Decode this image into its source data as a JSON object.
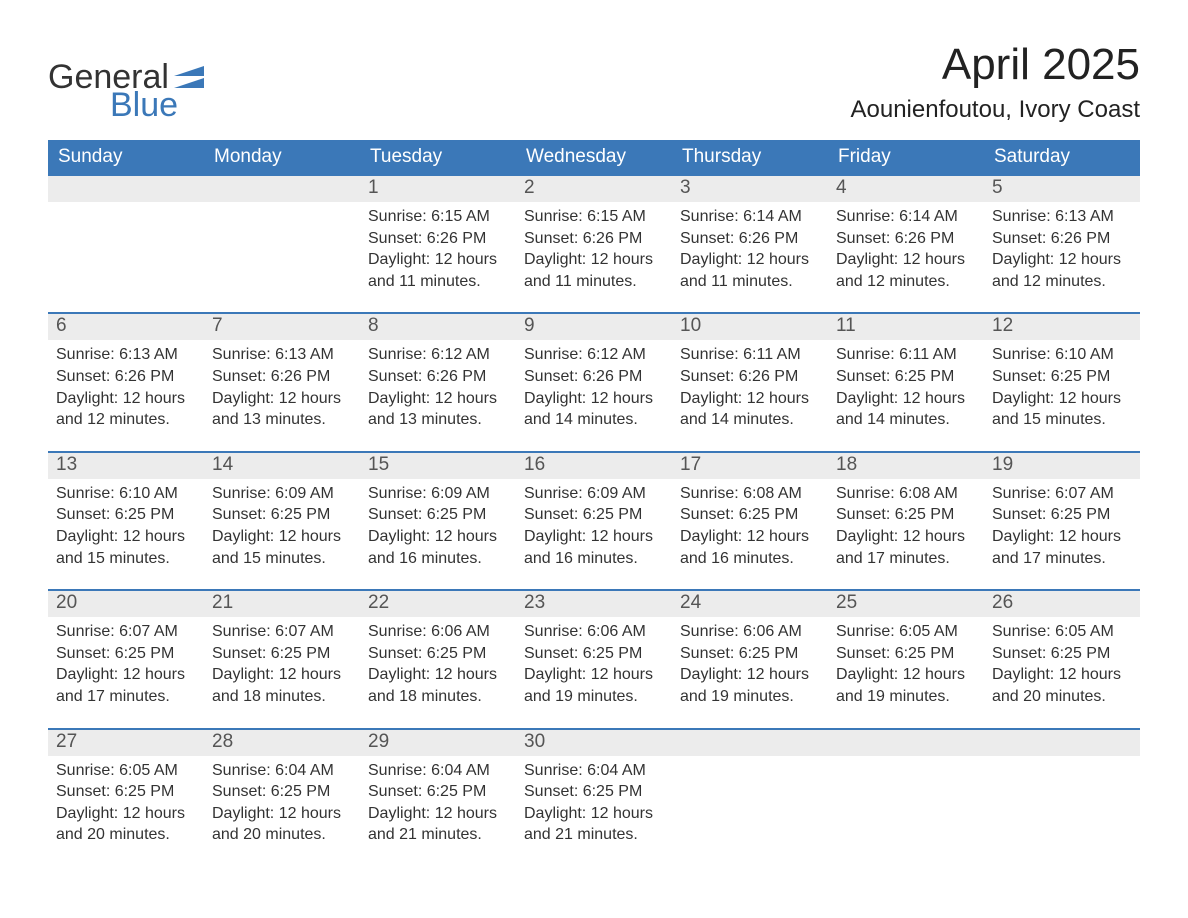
{
  "logo": {
    "text1": "General",
    "text2": "Blue",
    "color_general": "#333333",
    "color_blue": "#3b78b8",
    "flag_color": "#3b78b8"
  },
  "title": "April 2025",
  "location": "Aounienfoutou, Ivory Coast",
  "colors": {
    "header_bar": "#3b78b8",
    "header_text": "#ffffff",
    "daynum_bg": "#ececec",
    "text": "#333333",
    "week_border": "#3b78b8",
    "background": "#ffffff"
  },
  "fonts": {
    "title_size_pt": 33,
    "location_size_pt": 18,
    "dayhead_size_pt": 14,
    "daynum_size_pt": 14,
    "body_size_pt": 12
  },
  "day_headers": [
    "Sunday",
    "Monday",
    "Tuesday",
    "Wednesday",
    "Thursday",
    "Friday",
    "Saturday"
  ],
  "weeks": [
    {
      "days": [
        {
          "num": "",
          "sunrise": "",
          "sunset": "",
          "daylight": ""
        },
        {
          "num": "",
          "sunrise": "",
          "sunset": "",
          "daylight": ""
        },
        {
          "num": "1",
          "sunrise": "Sunrise: 6:15 AM",
          "sunset": "Sunset: 6:26 PM",
          "daylight": "Daylight: 12 hours and 11 minutes."
        },
        {
          "num": "2",
          "sunrise": "Sunrise: 6:15 AM",
          "sunset": "Sunset: 6:26 PM",
          "daylight": "Daylight: 12 hours and 11 minutes."
        },
        {
          "num": "3",
          "sunrise": "Sunrise: 6:14 AM",
          "sunset": "Sunset: 6:26 PM",
          "daylight": "Daylight: 12 hours and 11 minutes."
        },
        {
          "num": "4",
          "sunrise": "Sunrise: 6:14 AM",
          "sunset": "Sunset: 6:26 PM",
          "daylight": "Daylight: 12 hours and 12 minutes."
        },
        {
          "num": "5",
          "sunrise": "Sunrise: 6:13 AM",
          "sunset": "Sunset: 6:26 PM",
          "daylight": "Daylight: 12 hours and 12 minutes."
        }
      ]
    },
    {
      "days": [
        {
          "num": "6",
          "sunrise": "Sunrise: 6:13 AM",
          "sunset": "Sunset: 6:26 PM",
          "daylight": "Daylight: 12 hours and 12 minutes."
        },
        {
          "num": "7",
          "sunrise": "Sunrise: 6:13 AM",
          "sunset": "Sunset: 6:26 PM",
          "daylight": "Daylight: 12 hours and 13 minutes."
        },
        {
          "num": "8",
          "sunrise": "Sunrise: 6:12 AM",
          "sunset": "Sunset: 6:26 PM",
          "daylight": "Daylight: 12 hours and 13 minutes."
        },
        {
          "num": "9",
          "sunrise": "Sunrise: 6:12 AM",
          "sunset": "Sunset: 6:26 PM",
          "daylight": "Daylight: 12 hours and 14 minutes."
        },
        {
          "num": "10",
          "sunrise": "Sunrise: 6:11 AM",
          "sunset": "Sunset: 6:26 PM",
          "daylight": "Daylight: 12 hours and 14 minutes."
        },
        {
          "num": "11",
          "sunrise": "Sunrise: 6:11 AM",
          "sunset": "Sunset: 6:25 PM",
          "daylight": "Daylight: 12 hours and 14 minutes."
        },
        {
          "num": "12",
          "sunrise": "Sunrise: 6:10 AM",
          "sunset": "Sunset: 6:25 PM",
          "daylight": "Daylight: 12 hours and 15 minutes."
        }
      ]
    },
    {
      "days": [
        {
          "num": "13",
          "sunrise": "Sunrise: 6:10 AM",
          "sunset": "Sunset: 6:25 PM",
          "daylight": "Daylight: 12 hours and 15 minutes."
        },
        {
          "num": "14",
          "sunrise": "Sunrise: 6:09 AM",
          "sunset": "Sunset: 6:25 PM",
          "daylight": "Daylight: 12 hours and 15 minutes."
        },
        {
          "num": "15",
          "sunrise": "Sunrise: 6:09 AM",
          "sunset": "Sunset: 6:25 PM",
          "daylight": "Daylight: 12 hours and 16 minutes."
        },
        {
          "num": "16",
          "sunrise": "Sunrise: 6:09 AM",
          "sunset": "Sunset: 6:25 PM",
          "daylight": "Daylight: 12 hours and 16 minutes."
        },
        {
          "num": "17",
          "sunrise": "Sunrise: 6:08 AM",
          "sunset": "Sunset: 6:25 PM",
          "daylight": "Daylight: 12 hours and 16 minutes."
        },
        {
          "num": "18",
          "sunrise": "Sunrise: 6:08 AM",
          "sunset": "Sunset: 6:25 PM",
          "daylight": "Daylight: 12 hours and 17 minutes."
        },
        {
          "num": "19",
          "sunrise": "Sunrise: 6:07 AM",
          "sunset": "Sunset: 6:25 PM",
          "daylight": "Daylight: 12 hours and 17 minutes."
        }
      ]
    },
    {
      "days": [
        {
          "num": "20",
          "sunrise": "Sunrise: 6:07 AM",
          "sunset": "Sunset: 6:25 PM",
          "daylight": "Daylight: 12 hours and 17 minutes."
        },
        {
          "num": "21",
          "sunrise": "Sunrise: 6:07 AM",
          "sunset": "Sunset: 6:25 PM",
          "daylight": "Daylight: 12 hours and 18 minutes."
        },
        {
          "num": "22",
          "sunrise": "Sunrise: 6:06 AM",
          "sunset": "Sunset: 6:25 PM",
          "daylight": "Daylight: 12 hours and 18 minutes."
        },
        {
          "num": "23",
          "sunrise": "Sunrise: 6:06 AM",
          "sunset": "Sunset: 6:25 PM",
          "daylight": "Daylight: 12 hours and 19 minutes."
        },
        {
          "num": "24",
          "sunrise": "Sunrise: 6:06 AM",
          "sunset": "Sunset: 6:25 PM",
          "daylight": "Daylight: 12 hours and 19 minutes."
        },
        {
          "num": "25",
          "sunrise": "Sunrise: 6:05 AM",
          "sunset": "Sunset: 6:25 PM",
          "daylight": "Daylight: 12 hours and 19 minutes."
        },
        {
          "num": "26",
          "sunrise": "Sunrise: 6:05 AM",
          "sunset": "Sunset: 6:25 PM",
          "daylight": "Daylight: 12 hours and 20 minutes."
        }
      ]
    },
    {
      "days": [
        {
          "num": "27",
          "sunrise": "Sunrise: 6:05 AM",
          "sunset": "Sunset: 6:25 PM",
          "daylight": "Daylight: 12 hours and 20 minutes."
        },
        {
          "num": "28",
          "sunrise": "Sunrise: 6:04 AM",
          "sunset": "Sunset: 6:25 PM",
          "daylight": "Daylight: 12 hours and 20 minutes."
        },
        {
          "num": "29",
          "sunrise": "Sunrise: 6:04 AM",
          "sunset": "Sunset: 6:25 PM",
          "daylight": "Daylight: 12 hours and 21 minutes."
        },
        {
          "num": "30",
          "sunrise": "Sunrise: 6:04 AM",
          "sunset": "Sunset: 6:25 PM",
          "daylight": "Daylight: 12 hours and 21 minutes."
        },
        {
          "num": "",
          "sunrise": "",
          "sunset": "",
          "daylight": ""
        },
        {
          "num": "",
          "sunrise": "",
          "sunset": "",
          "daylight": ""
        },
        {
          "num": "",
          "sunrise": "",
          "sunset": "",
          "daylight": ""
        }
      ]
    }
  ]
}
